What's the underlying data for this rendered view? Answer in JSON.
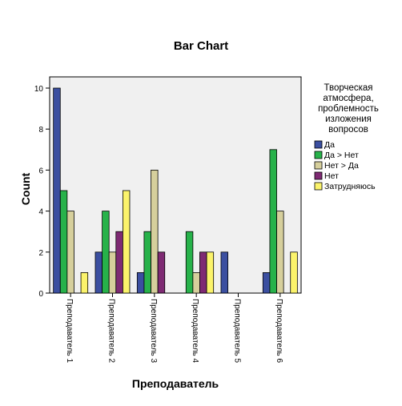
{
  "chart_data": {
    "type": "bar",
    "title": "Bar Chart",
    "xlabel": "Преподаватель",
    "ylabel": "Count",
    "ylim": [
      0,
      10
    ],
    "yticks": [
      0,
      2,
      4,
      6,
      8,
      10
    ],
    "grid": false,
    "legend_position": "right",
    "legend_title": [
      "Творческая",
      "атмосфера,",
      "проблемность",
      "изложения",
      "вопросов"
    ],
    "categories": [
      "Преподаватель 1",
      "Преподаватель 2",
      "Преподаватель 3",
      "Преподаватель 4",
      "Преподаватель 5",
      "Преподаватель 6"
    ],
    "series": [
      {
        "name": "Да",
        "color": "#3b4fa0",
        "values": [
          10,
          2,
          1,
          0,
          2,
          1
        ]
      },
      {
        "name": "Да > Нет",
        "color": "#27b24a",
        "values": [
          5,
          4,
          3,
          3,
          0,
          7
        ]
      },
      {
        "name": "Нет > Да",
        "color": "#d6cf9c",
        "values": [
          4,
          2,
          6,
          1,
          0,
          4
        ]
      },
      {
        "name": "Нет",
        "color": "#7e2a73",
        "values": [
          0,
          3,
          2,
          2,
          0,
          0
        ]
      },
      {
        "name": "Затрудняюсь",
        "color": "#fbf36b",
        "values": [
          1,
          5,
          0,
          2,
          0,
          2
        ]
      }
    ]
  }
}
